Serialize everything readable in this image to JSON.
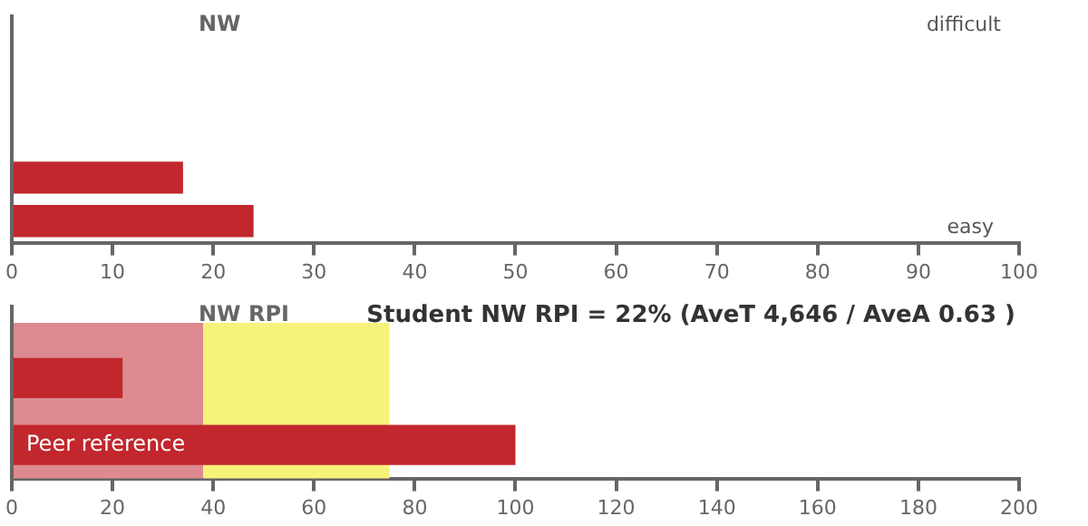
{
  "chart_data": [
    {
      "type": "bar",
      "orientation": "horizontal",
      "title": "NW",
      "categories": [
        null,
        null
      ],
      "series": [
        {
          "color": "#c1272d",
          "values": [
            17,
            24
          ]
        }
      ],
      "xlim": [
        0,
        100
      ],
      "xticks": [
        0,
        10,
        20,
        30,
        40,
        50,
        60,
        70,
        80,
        90,
        100
      ],
      "grid": false,
      "legend": false,
      "annotations": [
        "difficult",
        "easy"
      ]
    },
    {
      "type": "bar",
      "orientation": "horizontal",
      "title": "NW RPI",
      "categories": [
        null,
        "Peer reference"
      ],
      "series": [
        {
          "color": "#c1272d",
          "values": [
            22,
            100
          ]
        }
      ],
      "xlim": [
        0,
        200
      ],
      "xticks": [
        0,
        20,
        40,
        60,
        80,
        100,
        120,
        140,
        160,
        180,
        200
      ],
      "grid": false,
      "legend": false,
      "annotations": [
        "Student NW RPI = 22% (AveT 4,646 / AveA 0.63 )"
      ],
      "bands": [
        {
          "axis": "x",
          "from": 0,
          "to": 38,
          "color": "#dd8a90"
        },
        {
          "axis": "x",
          "from": 38,
          "to": 75,
          "color": "#f7f27a"
        }
      ]
    }
  ]
}
